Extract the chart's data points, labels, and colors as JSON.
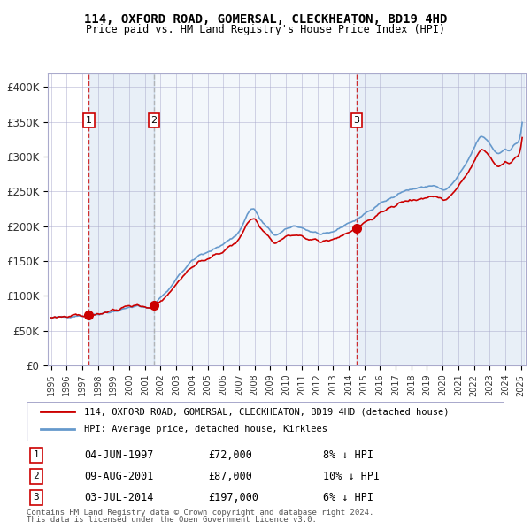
{
  "title1": "114, OXFORD ROAD, GOMERSAL, CLECKHEATON, BD19 4HD",
  "title2": "Price paid vs. HM Land Registry's House Price Index (HPI)",
  "sales": [
    {
      "date": "1997-06-04",
      "price": 72000,
      "label": 1
    },
    {
      "date": "2001-08-09",
      "price": 87000,
      "label": 2
    },
    {
      "date": "2014-07-03",
      "price": 197000,
      "label": 3
    }
  ],
  "sale_annotations": [
    {
      "num": 1,
      "date_str": "04-JUN-1997",
      "price_str": "£72,000",
      "pct_str": "8% ↓ HPI"
    },
    {
      "num": 2,
      "date_str": "09-AUG-2001",
      "price_str": "£87,000",
      "pct_str": "10% ↓ HPI"
    },
    {
      "num": 3,
      "date_str": "03-JUL-2014",
      "price_str": "£197,000",
      "pct_str": "6% ↓ HPI"
    }
  ],
  "legend_line1": "114, OXFORD ROAD, GOMERSAL, CLECKHEATON, BD19 4HD (detached house)",
  "legend_line2": "HPI: Average price, detached house, Kirklees",
  "footer1": "Contains HM Land Registry data © Crown copyright and database right 2024.",
  "footer2": "This data is licensed under the Open Government Licence v3.0.",
  "price_color": "#cc0000",
  "hpi_color": "#6699cc",
  "background_color": "#dce6f1",
  "plot_bg": "#ffffff",
  "grid_color": "#aaaacc",
  "ylim": [
    0,
    420000
  ],
  "xlabel_color": "#333333",
  "title_color": "#000000"
}
